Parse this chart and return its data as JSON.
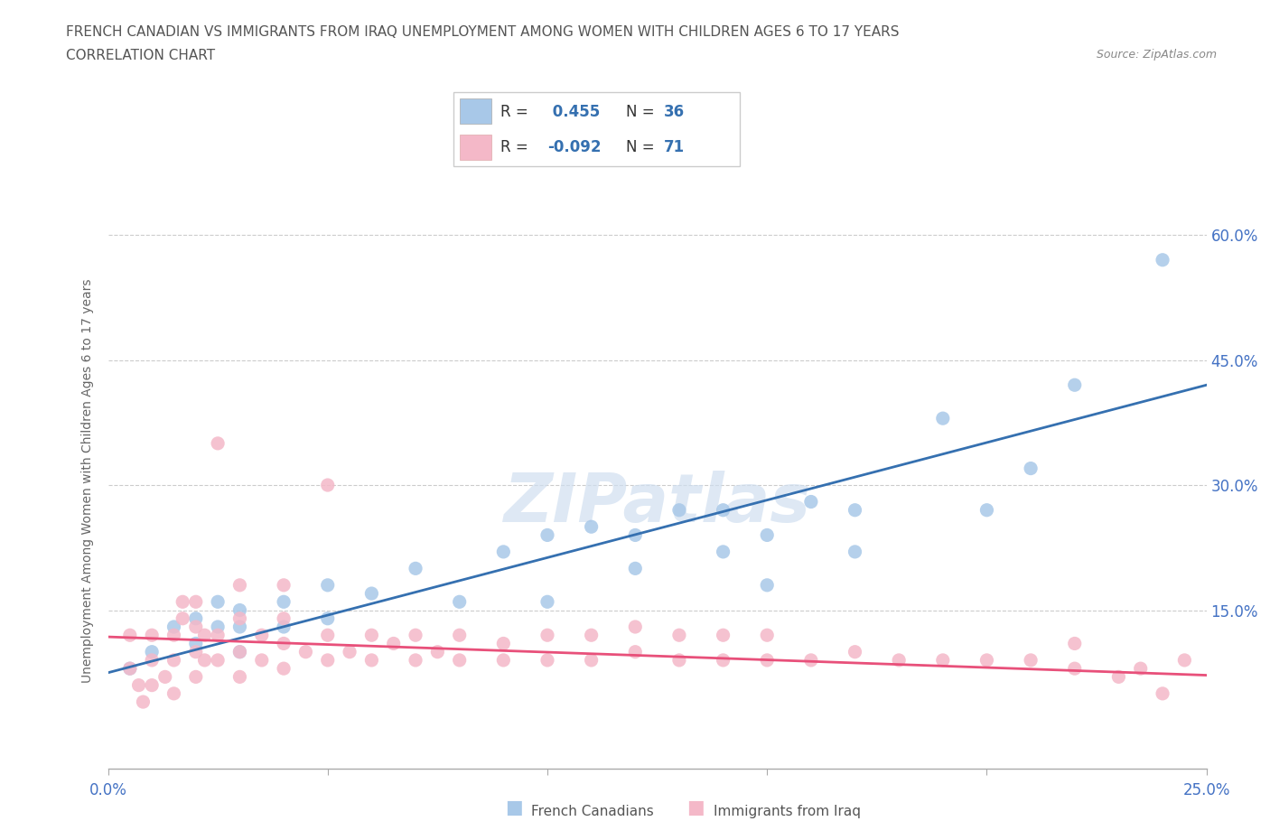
{
  "title_line1": "FRENCH CANADIAN VS IMMIGRANTS FROM IRAQ UNEMPLOYMENT AMONG WOMEN WITH CHILDREN AGES 6 TO 17 YEARS",
  "title_line2": "CORRELATION CHART",
  "source": "Source: ZipAtlas.com",
  "ylabel": "Unemployment Among Women with Children Ages 6 to 17 years",
  "xlim": [
    0.0,
    0.25
  ],
  "ylim": [
    -0.04,
    0.65
  ],
  "ytick_positions": [
    0.0,
    0.15,
    0.3,
    0.45,
    0.6
  ],
  "ytick_labels": [
    "",
    "15.0%",
    "30.0%",
    "45.0%",
    "60.0%"
  ],
  "blue_color": "#a8c8e8",
  "pink_color": "#f4b8c8",
  "blue_line_color": "#3570b0",
  "pink_line_color": "#e8507a",
  "legend_R_blue": "0.455",
  "legend_N_blue": "36",
  "legend_R_pink": "-0.092",
  "legend_N_pink": "71",
  "watermark": "ZIPatlas",
  "blue_scatter_x": [
    0.005,
    0.01,
    0.015,
    0.02,
    0.02,
    0.025,
    0.025,
    0.03,
    0.03,
    0.03,
    0.04,
    0.04,
    0.05,
    0.05,
    0.06,
    0.07,
    0.08,
    0.09,
    0.1,
    0.1,
    0.11,
    0.12,
    0.12,
    0.13,
    0.14,
    0.14,
    0.15,
    0.15,
    0.16,
    0.17,
    0.17,
    0.19,
    0.2,
    0.21,
    0.22,
    0.24
  ],
  "blue_scatter_y": [
    0.08,
    0.1,
    0.13,
    0.11,
    0.14,
    0.13,
    0.16,
    0.1,
    0.13,
    0.15,
    0.13,
    0.16,
    0.14,
    0.18,
    0.17,
    0.2,
    0.16,
    0.22,
    0.16,
    0.24,
    0.25,
    0.2,
    0.24,
    0.27,
    0.22,
    0.27,
    0.18,
    0.24,
    0.28,
    0.22,
    0.27,
    0.38,
    0.27,
    0.32,
    0.42,
    0.57
  ],
  "pink_scatter_x": [
    0.005,
    0.005,
    0.007,
    0.008,
    0.01,
    0.01,
    0.01,
    0.013,
    0.015,
    0.015,
    0.015,
    0.017,
    0.017,
    0.02,
    0.02,
    0.02,
    0.02,
    0.022,
    0.022,
    0.025,
    0.025,
    0.025,
    0.03,
    0.03,
    0.03,
    0.03,
    0.035,
    0.035,
    0.04,
    0.04,
    0.04,
    0.04,
    0.045,
    0.05,
    0.05,
    0.05,
    0.055,
    0.06,
    0.06,
    0.065,
    0.07,
    0.07,
    0.075,
    0.08,
    0.08,
    0.09,
    0.09,
    0.1,
    0.1,
    0.11,
    0.11,
    0.12,
    0.12,
    0.13,
    0.13,
    0.14,
    0.14,
    0.15,
    0.15,
    0.16,
    0.17,
    0.18,
    0.19,
    0.2,
    0.21,
    0.22,
    0.22,
    0.23,
    0.235,
    0.24,
    0.245
  ],
  "pink_scatter_y": [
    0.08,
    0.12,
    0.06,
    0.04,
    0.06,
    0.09,
    0.12,
    0.07,
    0.05,
    0.09,
    0.12,
    0.14,
    0.16,
    0.07,
    0.1,
    0.13,
    0.16,
    0.09,
    0.12,
    0.09,
    0.12,
    0.35,
    0.07,
    0.1,
    0.14,
    0.18,
    0.09,
    0.12,
    0.08,
    0.11,
    0.14,
    0.18,
    0.1,
    0.09,
    0.12,
    0.3,
    0.1,
    0.09,
    0.12,
    0.11,
    0.09,
    0.12,
    0.1,
    0.09,
    0.12,
    0.09,
    0.11,
    0.09,
    0.12,
    0.09,
    0.12,
    0.1,
    0.13,
    0.09,
    0.12,
    0.09,
    0.12,
    0.09,
    0.12,
    0.09,
    0.1,
    0.09,
    0.09,
    0.09,
    0.09,
    0.08,
    0.11,
    0.07,
    0.08,
    0.05,
    0.09
  ],
  "blue_trend_x0": 0.0,
  "blue_trend_y0": 0.075,
  "blue_trend_x1": 0.25,
  "blue_trend_y1": 0.42,
  "pink_trend_x0": 0.0,
  "pink_trend_y0": 0.118,
  "pink_trend_x1": 0.25,
  "pink_trend_y1": 0.072
}
